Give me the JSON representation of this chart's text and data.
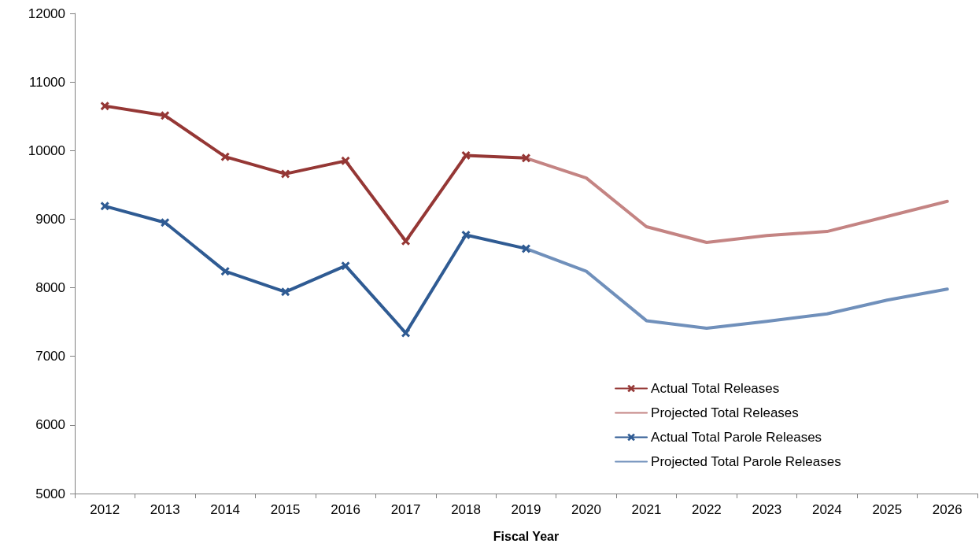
{
  "chart_data": {
    "type": "line",
    "xlabel": "Fiscal Year",
    "categories": [
      "2012",
      "2013",
      "2014",
      "2015",
      "2016",
      "2017",
      "2018",
      "2019",
      "2020",
      "2021",
      "2022",
      "2023",
      "2024",
      "2025",
      "2026"
    ],
    "series": [
      {
        "name": "Actual Total Releases",
        "color": "#953735",
        "marker": "cross",
        "values": [
          10650,
          10510,
          9910,
          9660,
          9850,
          8680,
          9930,
          9890,
          null,
          null,
          null,
          null,
          null,
          null,
          null
        ]
      },
      {
        "name": "Projected Total Releases",
        "color": "#c48483",
        "marker": "none",
        "values": [
          null,
          null,
          null,
          null,
          null,
          null,
          null,
          9890,
          9600,
          8890,
          8660,
          8760,
          8820,
          9040,
          9260
        ]
      },
      {
        "name": "Actual Total Parole Releases",
        "color": "#2f5b93",
        "marker": "cross",
        "values": [
          9190,
          8950,
          8240,
          7940,
          8320,
          7340,
          8770,
          8570,
          null,
          null,
          null,
          null,
          null,
          null,
          null
        ]
      },
      {
        "name": "Projected Total Parole Releases",
        "color": "#7090bb",
        "marker": "none",
        "values": [
          null,
          null,
          null,
          null,
          null,
          null,
          null,
          8570,
          8240,
          7520,
          7410,
          7510,
          7620,
          7820,
          7980
        ]
      }
    ],
    "ylim": [
      5000,
      12000
    ],
    "yticks": [
      5000,
      6000,
      7000,
      8000,
      9000,
      10000,
      11000,
      12000
    ],
    "grid": false,
    "legend": "bottom right",
    "line_style": "solid"
  }
}
